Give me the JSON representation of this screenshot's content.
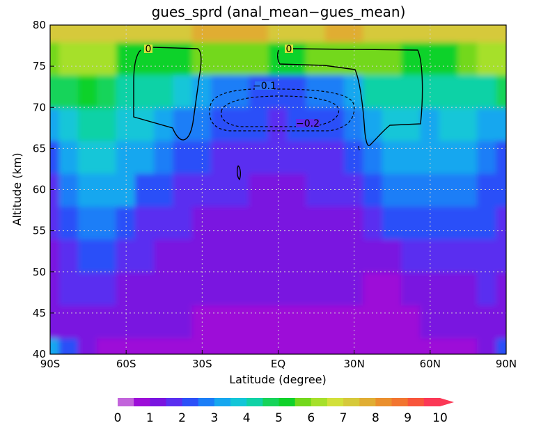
{
  "chart_data": {
    "type": "heatmap",
    "subtype": "filled-contour with line contours",
    "title": "gues_sprd (anal_mean−gues_mean)",
    "xlabel": "Latitude (degree)",
    "ylabel": "Altitude (km)",
    "xlim": [
      -90,
      90
    ],
    "ylim": [
      40,
      80
    ],
    "x_ticks": [
      {
        "value": -90,
        "label": "90S"
      },
      {
        "value": -60,
        "label": "60S"
      },
      {
        "value": -30,
        "label": "30S"
      },
      {
        "value": 0,
        "label": "EQ"
      },
      {
        "value": 30,
        "label": "30N"
      },
      {
        "value": 60,
        "label": "60N"
      },
      {
        "value": 90,
        "label": "90N"
      }
    ],
    "y_ticks": [
      40,
      45,
      50,
      55,
      60,
      65,
      70,
      75,
      80
    ],
    "grid": "dotted",
    "colorbar": {
      "position": "bottom",
      "levels": [
        0,
        0.5,
        1,
        1.5,
        2,
        2.5,
        3,
        3.5,
        4,
        4.5,
        5,
        5.5,
        6,
        6.5,
        7,
        7.5,
        8,
        8.5,
        9,
        9.5,
        10
      ],
      "tick_labels": [
        "0",
        "1",
        "2",
        "3",
        "4",
        "5",
        "6",
        "7",
        "8",
        "9",
        "10"
      ],
      "colors": [
        "#c264db",
        "#9d0ed8",
        "#7a14e0",
        "#5a2ff0",
        "#2c50f8",
        "#1b7ef7",
        "#16a7ef",
        "#12c6d8",
        "#10d2a6",
        "#16d45a",
        "#10d22a",
        "#73d81c",
        "#a6e02a",
        "#d2e03a",
        "#d6c93a",
        "#e0ad33",
        "#ea8f2d",
        "#f27530",
        "#f8553b",
        "#fb3856"
      ],
      "extend": "max"
    },
    "field_description": "Shaded: gues_sprd; contours: anal_mean−gues_mean",
    "line_contours": [
      {
        "level": 0,
        "label": "0",
        "style": "solid"
      },
      {
        "level": -0.1,
        "label": "−0.1",
        "style": "dashed"
      },
      {
        "level": -0.2,
        "label": "−0.2",
        "style": "dashed"
      }
    ],
    "field": [
      {
        "lat": -90,
        "alt": [
          3.0,
          1.1,
          1.3,
          1.4,
          1.6,
          1.9,
          2.3,
          3.0,
          4.6,
          5.8,
          7.2
        ]
      },
      {
        "lat": -82.5,
        "alt": [
          2.0,
          1.3,
          1.6,
          1.9,
          2.3,
          2.7,
          3.1,
          3.6,
          4.8,
          6.0,
          7.3
        ]
      },
      {
        "lat": -75,
        "alt": [
          1.0,
          1.2,
          1.8,
          2.2,
          2.8,
          3.3,
          3.7,
          4.2,
          5.0,
          6.4,
          7.4
        ]
      },
      {
        "lat": -67.5,
        "alt": [
          0.8,
          1.1,
          1.6,
          2.0,
          2.7,
          3.3,
          3.7,
          4.1,
          4.7,
          6.0,
          7.2
        ]
      },
      {
        "lat": -60,
        "alt": [
          0.9,
          1.1,
          1.4,
          1.7,
          2.4,
          3.0,
          3.4,
          3.8,
          4.2,
          5.4,
          7.0
        ]
      },
      {
        "lat": -52.5,
        "alt": [
          0.9,
          1.1,
          1.3,
          1.5,
          1.9,
          2.4,
          3.0,
          3.6,
          4.1,
          5.0,
          7.0
        ]
      },
      {
        "lat": -45,
        "alt": [
          0.9,
          1.0,
          1.2,
          1.4,
          1.7,
          2.0,
          2.6,
          3.3,
          4.0,
          5.2,
          7.2
        ]
      },
      {
        "lat": -37.5,
        "alt": [
          0.9,
          1.0,
          1.1,
          1.3,
          1.5,
          1.8,
          2.2,
          2.8,
          3.7,
          5.4,
          7.4
        ]
      },
      {
        "lat": -30,
        "alt": [
          0.8,
          0.9,
          1.0,
          1.2,
          1.4,
          1.6,
          2.0,
          2.5,
          3.3,
          5.6,
          7.6
        ]
      },
      {
        "lat": -22.5,
        "alt": [
          0.8,
          0.9,
          1.0,
          1.1,
          1.3,
          1.5,
          1.9,
          2.3,
          2.9,
          5.6,
          7.6
        ]
      },
      {
        "lat": -15,
        "alt": [
          0.8,
          0.9,
          1.0,
          1.1,
          1.3,
          1.5,
          1.8,
          2.2,
          2.6,
          5.6,
          7.5
        ]
      },
      {
        "lat": -7.5,
        "alt": [
          0.8,
          0.9,
          1.0,
          1.1,
          1.2,
          1.4,
          1.7,
          2.0,
          2.3,
          5.5,
          7.5
        ]
      },
      {
        "lat": 0,
        "alt": [
          0.8,
          0.9,
          1.0,
          1.1,
          1.2,
          1.4,
          1.6,
          1.9,
          2.2,
          5.4,
          7.3
        ]
      },
      {
        "lat": 7.5,
        "alt": [
          0.8,
          0.9,
          1.0,
          1.1,
          1.2,
          1.4,
          1.7,
          2.0,
          2.3,
          5.4,
          7.3
        ]
      },
      {
        "lat": 15,
        "alt": [
          0.7,
          0.8,
          1.0,
          1.1,
          1.3,
          1.5,
          1.8,
          2.2,
          2.6,
          5.5,
          7.4
        ]
      },
      {
        "lat": 22.5,
        "alt": [
          0.6,
          0.8,
          1.0,
          1.1,
          1.3,
          1.6,
          1.9,
          2.3,
          2.9,
          5.6,
          7.5
        ]
      },
      {
        "lat": 30,
        "alt": [
          0.7,
          0.8,
          1.0,
          1.2,
          1.4,
          1.7,
          2.1,
          2.6,
          3.3,
          5.7,
          7.6
        ]
      },
      {
        "lat": 37.5,
        "alt": [
          0.6,
          0.7,
          0.9,
          1.3,
          1.7,
          2.1,
          2.7,
          3.4,
          4.0,
          5.7,
          7.4
        ]
      },
      {
        "lat": 45,
        "alt": [
          0.5,
          0.6,
          0.8,
          1.4,
          2.0,
          2.6,
          3.3,
          3.8,
          4.3,
          5.5,
          7.2
        ]
      },
      {
        "lat": 52.5,
        "alt": [
          0.7,
          0.8,
          1.1,
          1.5,
          2.2,
          2.8,
          3.4,
          3.8,
          4.3,
          5.4,
          7.0
        ]
      },
      {
        "lat": 60,
        "alt": [
          0.9,
          1.0,
          1.2,
          1.6,
          2.1,
          2.6,
          3.0,
          3.4,
          4.0,
          5.2,
          7.0
        ]
      },
      {
        "lat": 67.5,
        "alt": [
          0.9,
          1.0,
          1.3,
          1.7,
          2.3,
          2.9,
          3.4,
          3.8,
          4.3,
          5.4,
          7.1
        ]
      },
      {
        "lat": 75,
        "alt": [
          0.9,
          1.1,
          1.4,
          1.8,
          2.3,
          2.8,
          3.2,
          3.5,
          4.2,
          5.7,
          7.3
        ]
      },
      {
        "lat": 82.5,
        "alt": [
          1.2,
          1.3,
          1.5,
          1.7,
          2.0,
          2.4,
          2.8,
          3.2,
          4.4,
          6.0,
          7.3
        ]
      },
      {
        "lat": 90,
        "alt": [
          2.2,
          1.3,
          1.4,
          1.5,
          1.7,
          2.0,
          2.4,
          3.0,
          4.6,
          6.0,
          7.3
        ]
      }
    ],
    "field_altitudes": [
      40,
      44,
      48,
      52,
      56,
      60,
      64,
      68,
      72,
      76,
      80
    ]
  }
}
